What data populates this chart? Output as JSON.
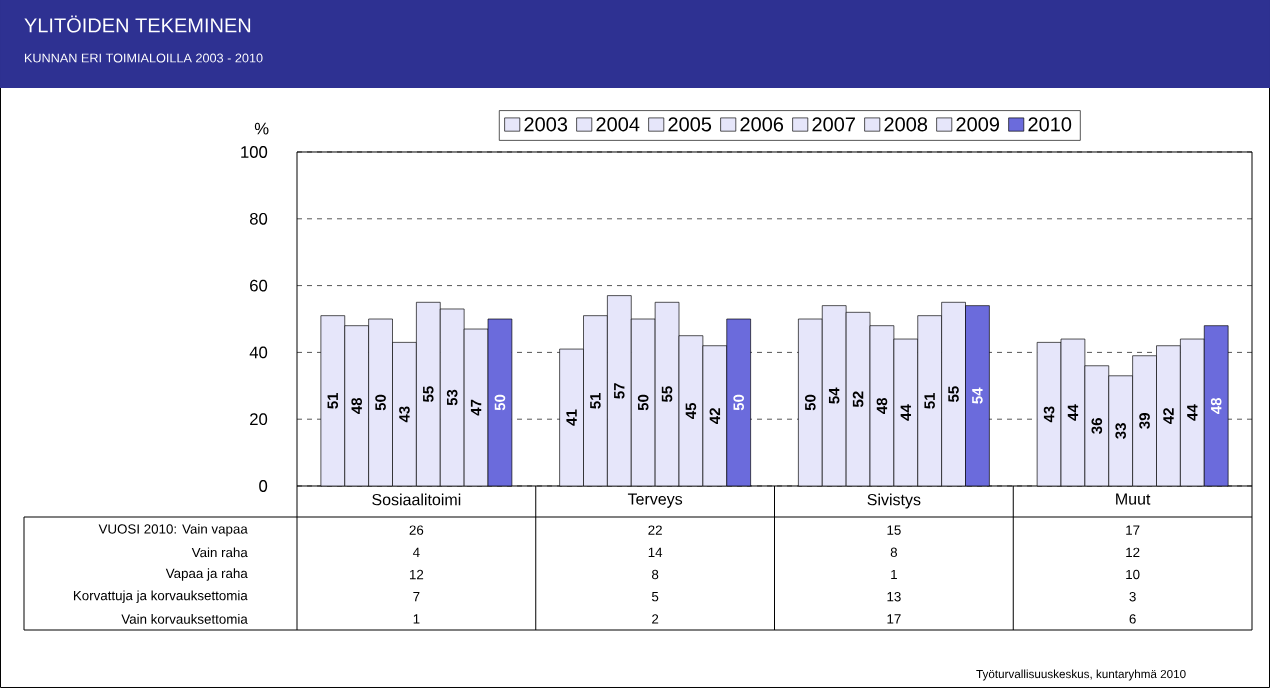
{
  "chart_data": [
    {
      "type": "bar",
      "title": "YLITÖIDEN TEKEMINEN",
      "subtitle": "KUNNAN ERI TOIMIALOILLA 2003 - 2010",
      "ylabel": "%",
      "categories": [
        "Sosiaalitoimi",
        "Terveys",
        "Sivistys",
        "Muut"
      ],
      "series": [
        {
          "name": "2003",
          "color": "#e6e6fa",
          "values": [
            51,
            41,
            50,
            43
          ]
        },
        {
          "name": "2004",
          "color": "#e6e6fa",
          "values": [
            48,
            51,
            54,
            44
          ]
        },
        {
          "name": "2005",
          "color": "#e6e6fa",
          "values": [
            50,
            57,
            52,
            36
          ]
        },
        {
          "name": "2006",
          "color": "#e6e6fa",
          "values": [
            43,
            50,
            48,
            33
          ]
        },
        {
          "name": "2007",
          "color": "#e6e6fa",
          "values": [
            55,
            55,
            44,
            39
          ]
        },
        {
          "name": "2008",
          "color": "#e6e6fa",
          "values": [
            53,
            45,
            51,
            42
          ]
        },
        {
          "name": "2009",
          "color": "#e6e6fa",
          "values": [
            47,
            42,
            55,
            44
          ]
        },
        {
          "name": "2010",
          "color": "#6b6bdc",
          "values": [
            50,
            50,
            54,
            48
          ]
        }
      ],
      "ylim": [
        0,
        100
      ],
      "yticks": [
        0,
        20,
        40,
        60,
        80,
        100
      ],
      "grid": "y",
      "legend": "top",
      "data_labels": true,
      "annotations": [
        "Työturvallisuuskeskus, kuntaryhmä 2010"
      ]
    },
    {
      "type": "heatmap",
      "categories": [
        null,
        null,
        null,
        null
      ],
      "y_categories": [
        "VUOSI 2010: Vain vapaa",
        "Vain raha",
        "Vapaa ja raha",
        "Korvattuja ja korvauksettomia",
        "Vain korvauksettomia"
      ],
      "cells": [
        [
          26,
          22,
          15,
          17
        ],
        [
          4,
          14,
          8,
          12
        ],
        [
          12,
          8,
          1,
          10
        ],
        [
          7,
          5,
          13,
          3
        ],
        [
          1,
          2,
          17,
          6
        ]
      ],
      "color": "#ffffff",
      "data_labels": true
    }
  ]
}
